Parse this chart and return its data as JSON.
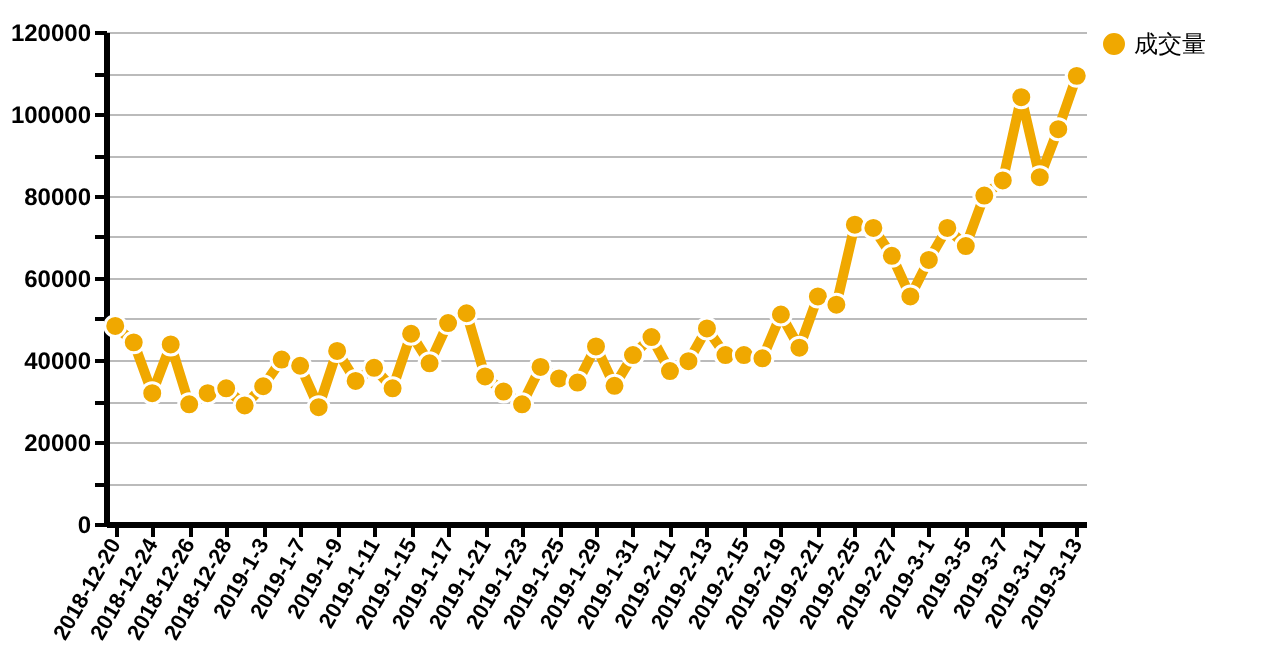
{
  "chart_data": {
    "type": "line",
    "categories": [
      "2018-12-20",
      null,
      "2018-12-24",
      null,
      "2018-12-26",
      null,
      "2018-12-28",
      null,
      "2019-1-3",
      null,
      "2019-1-7",
      null,
      "2019-1-9",
      null,
      "2019-1-11",
      null,
      "2019-1-15",
      null,
      "2019-1-17",
      null,
      "2019-1-21",
      null,
      "2019-1-23",
      null,
      "2019-1-25",
      null,
      "2019-1-29",
      null,
      "2019-1-31",
      null,
      "2019-2-11",
      null,
      "2019-2-13",
      null,
      "2019-2-15",
      null,
      "2019-2-19",
      null,
      "2019-2-21",
      null,
      "2019-2-25",
      null,
      "2019-2-27",
      null,
      "2019-3-1",
      null,
      "2019-3-5",
      null,
      "2019-3-7",
      null,
      "2019-3-11",
      null,
      "2019-3-13"
    ],
    "series": [
      {
        "name": "成交量",
        "color": "#f0a800",
        "values": [
          48300,
          44300,
          31900,
          43800,
          29200,
          31900,
          33100,
          28900,
          33600,
          40100,
          38600,
          28500,
          42200,
          34900,
          38100,
          33100,
          46400,
          39200,
          49000,
          51400,
          36000,
          32300,
          29200,
          38300,
          35500,
          34500,
          43300,
          33700,
          41200,
          45600,
          37300,
          39700,
          47700,
          41200,
          41200,
          40400,
          51100,
          43000,
          55500,
          53500,
          73000,
          72200,
          65400,
          55500,
          64400,
          72200,
          67800,
          80100,
          83800,
          104100,
          84600,
          96300,
          109300
        ]
      }
    ],
    "ylim": [
      0,
      120000
    ],
    "yticks": [
      0,
      {
        "value": 10000,
        "label": null
      },
      20000,
      {
        "value": 30000,
        "label": null
      },
      40000,
      {
        "value": 50000,
        "label": null
      },
      60000,
      {
        "value": 70000,
        "label": null
      },
      80000,
      {
        "value": 90000,
        "label": null
      },
      100000,
      {
        "value": 110000,
        "label": null
      },
      120000
    ],
    "grid": "y",
    "legend": "right",
    "marker": "circle",
    "line_style": "solid"
  }
}
